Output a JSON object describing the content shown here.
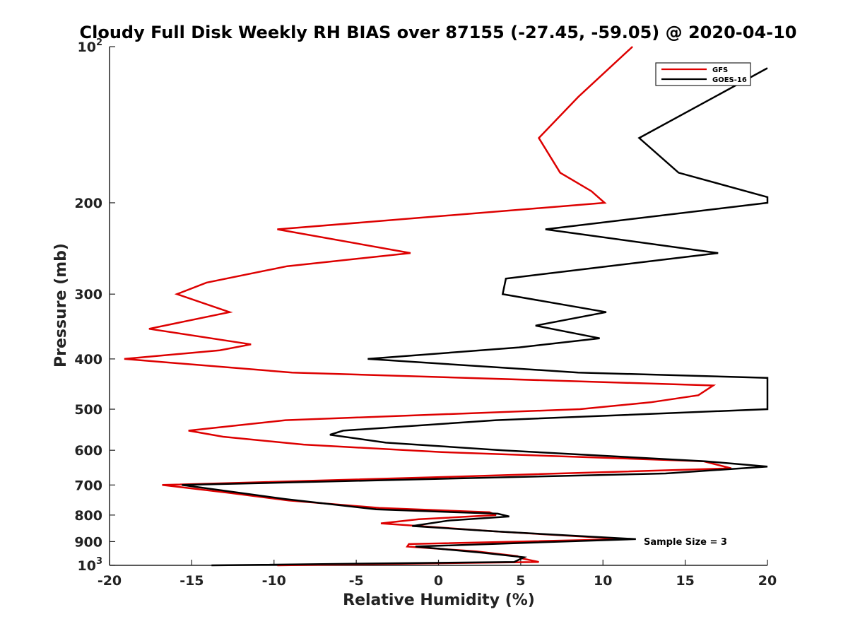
{
  "chart_data": {
    "type": "line",
    "title": "Cloudy Full Disk Weekly RH BIAS over 87155 (-27.45, -59.05) @ 2020-04-10",
    "xlabel": "Relative Humidity (%)",
    "ylabel": "Pressure (mb)",
    "xlim": [
      -20,
      20
    ],
    "ylim": [
      100,
      1000
    ],
    "y_scale": "log",
    "y_reversed": true,
    "x_ticks": [
      -20,
      -15,
      -10,
      -5,
      0,
      5,
      10,
      15,
      20
    ],
    "x_tick_labels": [
      "-20",
      "-15",
      "-10",
      "-5",
      "0",
      "5",
      "10",
      "15",
      "20"
    ],
    "y_ticks": [
      100,
      200,
      300,
      400,
      500,
      600,
      700,
      800,
      900,
      1000
    ],
    "y_tick_labels": [
      {
        "base": "10",
        "exp": "2"
      },
      {
        "base": "200"
      },
      {
        "base": "300"
      },
      {
        "base": "400"
      },
      {
        "base": "500"
      },
      {
        "base": "600"
      },
      {
        "base": "700"
      },
      {
        "base": "800"
      },
      {
        "base": "900"
      },
      {
        "base": "10",
        "exp": "3"
      }
    ],
    "legend_position": "top-right",
    "annotation": "Sample Size = 3",
    "series": [
      {
        "name": "GFS",
        "color": "#dd0000",
        "points": [
          [
            11.8,
            100
          ],
          [
            8.5,
            125
          ],
          [
            6.1,
            150
          ],
          [
            7.4,
            175
          ],
          [
            9.3,
            190
          ],
          [
            10.1,
            200
          ],
          [
            -9.8,
            225
          ],
          [
            -1.7,
            250
          ],
          [
            -9.2,
            265
          ],
          [
            -14.1,
            285
          ],
          [
            -15.9,
            300
          ],
          [
            -12.7,
            325
          ],
          [
            -17.6,
            350
          ],
          [
            -11.4,
            375
          ],
          [
            -13.3,
            385
          ],
          [
            -19.1,
            400
          ],
          [
            -8.9,
            425
          ],
          [
            16.7,
            450
          ],
          [
            15.8,
            470
          ],
          [
            12.9,
            485
          ],
          [
            8.6,
            500
          ],
          [
            -9.3,
            525
          ],
          [
            -15.2,
            550
          ],
          [
            -13.1,
            565
          ],
          [
            -8.2,
            585
          ],
          [
            0.2,
            605
          ],
          [
            16.1,
            630
          ],
          [
            17.8,
            650
          ],
          [
            0.7,
            675
          ],
          [
            -16.8,
            700
          ],
          [
            -12.7,
            725
          ],
          [
            -9.1,
            750
          ],
          [
            -3.6,
            775
          ],
          [
            3.1,
            790
          ],
          [
            3.5,
            800
          ],
          [
            -1.2,
            815
          ],
          [
            -3.5,
            830
          ],
          [
            3.4,
            860
          ],
          [
            11.4,
            890
          ],
          [
            -1.8,
            910
          ],
          [
            -1.9,
            920
          ],
          [
            2.3,
            940
          ],
          [
            4.8,
            960
          ],
          [
            5.1,
            970
          ],
          [
            6.1,
            985
          ],
          [
            -9.8,
            1000
          ]
        ]
      },
      {
        "name": "GOES-16",
        "color": "#000000",
        "points": [
          [
            20.0,
            110
          ],
          [
            12.2,
            150
          ],
          [
            14.6,
            175
          ],
          [
            20.0,
            195
          ],
          [
            20.0,
            200
          ],
          [
            6.5,
            225
          ],
          [
            17.0,
            250
          ],
          [
            4.1,
            280
          ],
          [
            3.9,
            300
          ],
          [
            10.2,
            325
          ],
          [
            5.9,
            345
          ],
          [
            9.8,
            365
          ],
          [
            4.9,
            380
          ],
          [
            -4.3,
            400
          ],
          [
            8.5,
            425
          ],
          [
            20.0,
            435
          ],
          [
            20.0,
            500
          ],
          [
            3.5,
            525
          ],
          [
            -5.8,
            550
          ],
          [
            -6.6,
            560
          ],
          [
            -3.2,
            580
          ],
          [
            3.9,
            600
          ],
          [
            16.2,
            630
          ],
          [
            20.0,
            645
          ],
          [
            13.8,
            665
          ],
          [
            -15.6,
            700
          ],
          [
            -9.3,
            745
          ],
          [
            -3.8,
            780
          ],
          [
            3.6,
            795
          ],
          [
            4.3,
            805
          ],
          [
            0.6,
            820
          ],
          [
            -1.6,
            840
          ],
          [
            3.4,
            860
          ],
          [
            12.0,
            890
          ],
          [
            -1.4,
            920
          ],
          [
            2.6,
            945
          ],
          [
            5.2,
            965
          ],
          [
            4.6,
            985
          ],
          [
            -13.8,
            1000
          ]
        ]
      }
    ]
  }
}
